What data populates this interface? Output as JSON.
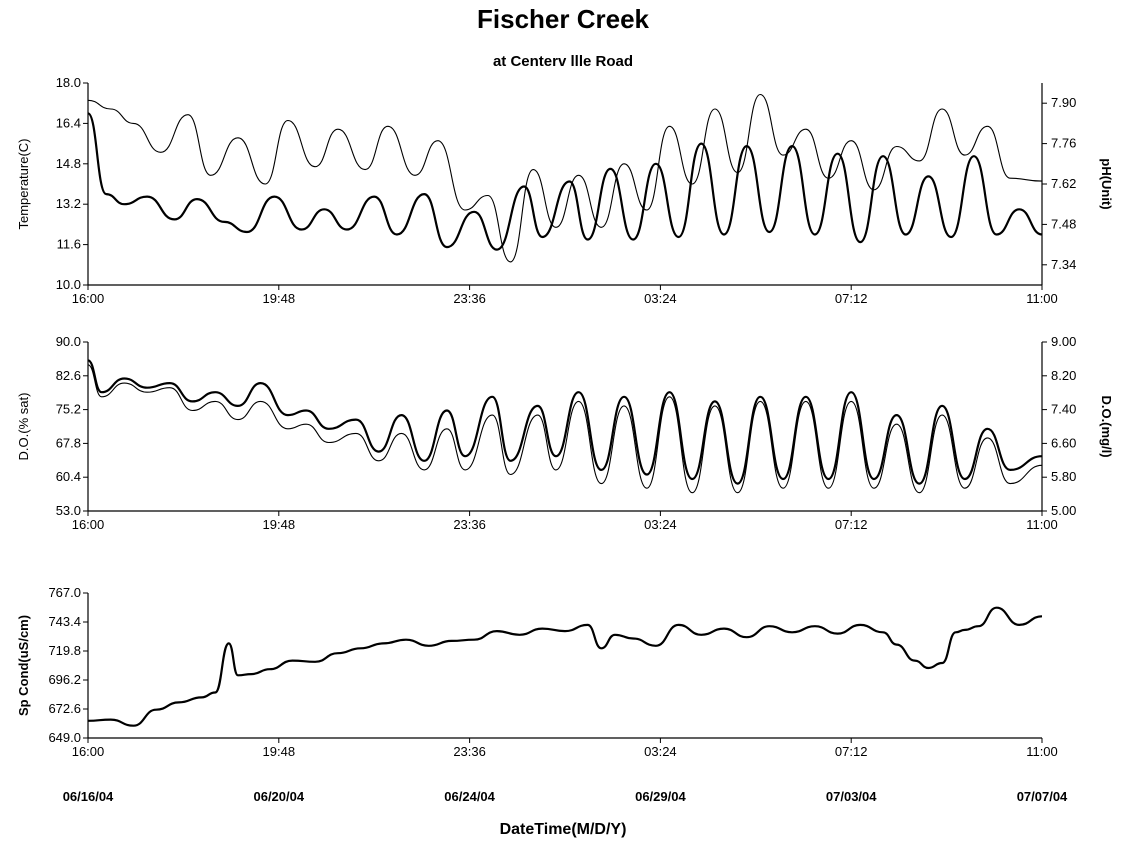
{
  "title": "Fischer Creek",
  "subtitle": "at Centerv llle Road",
  "x_axis_title": "DateTime(M/D/Y)",
  "date_labels": [
    "06/16/04",
    "06/20/04",
    "06/24/04",
    "06/29/04",
    "07/03/04",
    "07/07/04"
  ],
  "chart_data": [
    {
      "type": "line",
      "name": "temperature-ph",
      "x_tick_labels": [
        "16:00",
        "19:48",
        "23:36",
        "03:24",
        "07:12",
        "11:00"
      ],
      "ylabel_left": "Temperature(C)",
      "ylabel_right": "pH(Unit)",
      "ylim_left": [
        10.0,
        18.0
      ],
      "yticks_left": [
        "10.0",
        "11.6",
        "13.2",
        "14.8",
        "16.4",
        "18.0"
      ],
      "ylim_right": [
        7.27,
        7.97
      ],
      "yticks_right": [
        "7.34",
        "7.48",
        "7.62",
        "7.76",
        "7.90"
      ],
      "x_days": [
        0,
        21
      ],
      "series": [
        {
          "axis": "left",
          "style": "thick",
          "x": [
            0,
            0.4,
            0.8,
            1.3,
            1.9,
            2.4,
            3.0,
            3.5,
            4.1,
            4.7,
            5.2,
            5.7,
            6.3,
            6.8,
            7.4,
            7.9,
            8.5,
            9.0,
            9.6,
            10.0,
            10.6,
            11.0,
            11.5,
            12.0,
            12.5,
            13.0,
            13.5,
            14.0,
            14.5,
            15.0,
            15.5,
            16.0,
            16.5,
            17.0,
            17.5,
            18.0,
            18.5,
            19.0,
            19.5,
            20.0,
            20.5,
            21.0
          ],
          "values": [
            16.8,
            13.6,
            13.2,
            13.5,
            12.6,
            13.4,
            12.5,
            12.1,
            13.5,
            12.2,
            13.0,
            12.2,
            13.5,
            12.0,
            13.6,
            11.5,
            12.9,
            11.4,
            13.9,
            11.9,
            14.1,
            11.8,
            14.6,
            11.8,
            14.8,
            11.9,
            15.6,
            12.0,
            15.5,
            12.1,
            15.5,
            12.0,
            15.2,
            11.7,
            15.1,
            12.0,
            14.3,
            11.9,
            15.1,
            12.0,
            13.0,
            12.0
          ]
        },
        {
          "axis": "right",
          "style": "thin",
          "x": [
            0,
            0.5,
            1.0,
            1.6,
            2.2,
            2.7,
            3.3,
            3.9,
            4.4,
            5.0,
            5.5,
            6.1,
            6.6,
            7.2,
            7.7,
            8.3,
            8.8,
            9.3,
            9.8,
            10.3,
            10.8,
            11.3,
            11.8,
            12.3,
            12.8,
            13.3,
            13.8,
            14.3,
            14.8,
            15.3,
            15.8,
            16.3,
            16.8,
            17.3,
            17.8,
            18.3,
            18.8,
            19.3,
            19.8,
            20.3,
            21.0
          ],
          "values": [
            7.91,
            7.88,
            7.83,
            7.73,
            7.86,
            7.65,
            7.78,
            7.62,
            7.84,
            7.68,
            7.81,
            7.67,
            7.82,
            7.65,
            7.77,
            7.53,
            7.58,
            7.35,
            7.67,
            7.47,
            7.65,
            7.47,
            7.69,
            7.53,
            7.82,
            7.62,
            7.88,
            7.66,
            7.93,
            7.72,
            7.81,
            7.64,
            7.77,
            7.6,
            7.75,
            7.7,
            7.88,
            7.72,
            7.82,
            7.64,
            7.63
          ]
        }
      ]
    },
    {
      "type": "line",
      "name": "dissolved-oxygen",
      "x_tick_labels": [
        "16:00",
        "19:48",
        "23:36",
        "03:24",
        "07:12",
        "11:00"
      ],
      "ylabel_left": "D.O.(% sat)",
      "ylabel_right": "D.O.(mg/l)",
      "ylim_left": [
        53.0,
        90.0
      ],
      "yticks_left": [
        "53.0",
        "60.4",
        "67.8",
        "75.2",
        "82.6",
        "90.0"
      ],
      "ylim_right": [
        5.0,
        9.0
      ],
      "yticks_right": [
        "5.00",
        "5.80",
        "6.60",
        "7.40",
        "8.20",
        "9.00"
      ],
      "x_days": [
        0,
        21
      ],
      "series": [
        {
          "axis": "left",
          "style": "thick",
          "x": [
            0,
            0.3,
            0.8,
            1.3,
            1.8,
            2.3,
            2.8,
            3.3,
            3.8,
            4.4,
            4.8,
            5.3,
            5.9,
            6.4,
            6.9,
            7.4,
            7.9,
            8.3,
            8.9,
            9.3,
            9.9,
            10.3,
            10.8,
            11.3,
            11.8,
            12.3,
            12.8,
            13.3,
            13.8,
            14.3,
            14.8,
            15.3,
            15.8,
            16.3,
            16.8,
            17.3,
            17.8,
            18.3,
            18.8,
            19.3,
            19.8,
            20.3,
            21.0
          ],
          "values": [
            86,
            79,
            82,
            80,
            81,
            77,
            79,
            76,
            81,
            74,
            75,
            71,
            73,
            66,
            74,
            64,
            75,
            65,
            78,
            64,
            76,
            65,
            79,
            62,
            78,
            61,
            79,
            60,
            77,
            59,
            78,
            60,
            78,
            60,
            79,
            60,
            74,
            59,
            76,
            60,
            71,
            62,
            65
          ]
        },
        {
          "axis": "left",
          "style": "thin",
          "x": [
            0,
            0.3,
            0.8,
            1.3,
            1.8,
            2.3,
            2.8,
            3.3,
            3.8,
            4.4,
            4.8,
            5.3,
            5.9,
            6.4,
            6.9,
            7.4,
            7.9,
            8.3,
            8.9,
            9.3,
            9.9,
            10.3,
            10.8,
            11.3,
            11.8,
            12.3,
            12.8,
            13.3,
            13.8,
            14.3,
            14.8,
            15.3,
            15.8,
            16.3,
            16.8,
            17.3,
            17.8,
            18.3,
            18.8,
            19.3,
            19.8,
            20.3,
            21.0
          ],
          "values": [
            85,
            78,
            81,
            79,
            80,
            75,
            77,
            73,
            77,
            71,
            72,
            68,
            70,
            64,
            70,
            62,
            71,
            62,
            74,
            61,
            74,
            62,
            77,
            59,
            76,
            58,
            78,
            57,
            76,
            57,
            77,
            58,
            77,
            58,
            77,
            58,
            72,
            57,
            74,
            58,
            69,
            59,
            63
          ]
        }
      ]
    },
    {
      "type": "line",
      "name": "specific-conductance",
      "x_tick_labels": [
        "16:00",
        "19:48",
        "23:36",
        "03:24",
        "07:12",
        "11:00"
      ],
      "ylabel_left": "Sp Cond(uS/cm)",
      "ylim_left": [
        649.0,
        767.0
      ],
      "yticks_left": [
        "649.0",
        "672.6",
        "696.2",
        "719.8",
        "743.4",
        "767.0"
      ],
      "x_days": [
        0,
        21
      ],
      "series": [
        {
          "axis": "left",
          "style": "thick",
          "x": [
            0,
            0.5,
            1.0,
            1.5,
            2.0,
            2.5,
            2.8,
            3.1,
            3.3,
            3.6,
            4.0,
            4.5,
            5.0,
            5.5,
            6.0,
            6.5,
            7.0,
            7.5,
            8.0,
            8.5,
            9.0,
            9.5,
            10.0,
            10.5,
            11.0,
            11.3,
            11.6,
            12.0,
            12.5,
            13.0,
            13.5,
            14.0,
            14.5,
            15.0,
            15.5,
            16.0,
            16.5,
            17.0,
            17.5,
            17.8,
            18.2,
            18.5,
            18.8,
            19.1,
            19.3,
            19.6,
            20.0,
            20.5,
            21.0
          ],
          "values": [
            663,
            664,
            659,
            672,
            678,
            682,
            686,
            726,
            700,
            701,
            705,
            712,
            711,
            718,
            722,
            726,
            729,
            724,
            728,
            729,
            736,
            733,
            738,
            736,
            741,
            722,
            733,
            730,
            724,
            741,
            733,
            738,
            731,
            740,
            735,
            740,
            734,
            741,
            735,
            725,
            712,
            706,
            710,
            735,
            737,
            740,
            755,
            741,
            748
          ]
        }
      ]
    }
  ]
}
